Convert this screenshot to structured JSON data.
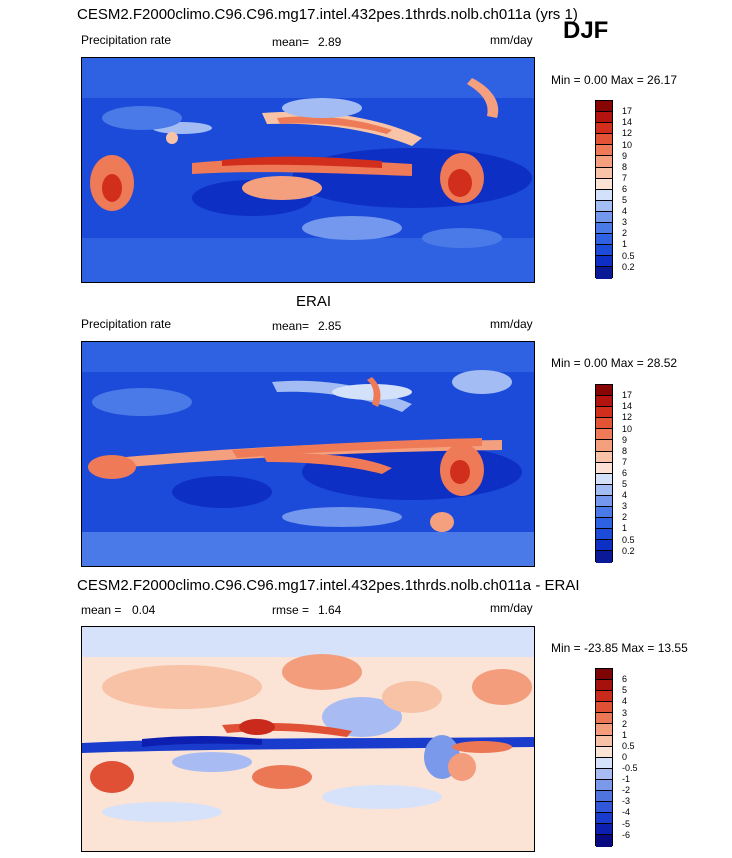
{
  "season": "DJF",
  "panels": [
    {
      "title": "CESM2.F2000climo.C96.C96.mg17.intel.432pes.1thrds.nolb.ch011a (yrs 1)",
      "left_label": "Precipitation rate",
      "stat_label": "mean=",
      "stat_value": "2.89",
      "units": "mm/day",
      "min_max": "Min =   0.00 Max =  26.17",
      "min": 0.0,
      "max": 26.17,
      "palette": "precip"
    },
    {
      "title": "ERAI",
      "left_label": "Precipitation rate",
      "stat_label": "mean=",
      "stat_value": "2.85",
      "units": "mm/day",
      "min_max": "Min =   0.00 Max =  28.52",
      "min": 0.0,
      "max": 28.52,
      "palette": "precip"
    },
    {
      "title": "CESM2.F2000climo.C96.C96.mg17.intel.432pes.1thrds.nolb.ch011a - ERAI",
      "left_label": "mean =",
      "left_value": "0.04",
      "stat_label": "rmse =",
      "stat_value": "1.64",
      "units": "mm/day",
      "min_max": "Min = -23.85 Max =  13.55",
      "min": -23.85,
      "max": 13.55,
      "palette": "diff"
    }
  ],
  "chart_data": [
    {
      "type": "heatmap",
      "title": "CESM2.F2000climo.C96.C96.mg17.intel.432pes.1thrds.nolb.ch011a (yrs 1)",
      "variable": "Precipitation rate",
      "units": "mm/day",
      "mean": 2.89,
      "min": 0.0,
      "max": 26.17,
      "colorbar_levels": [
        0.2,
        0.5,
        1,
        2,
        3,
        4,
        5,
        6,
        7,
        8,
        9,
        10,
        12,
        14,
        17
      ],
      "colorbar_labels": [
        "0.2",
        "0.5",
        "1",
        "2",
        "3",
        "4",
        "5",
        "6",
        "7",
        "8",
        "9",
        "10",
        "12",
        "14",
        "17"
      ]
    },
    {
      "type": "heatmap",
      "title": "ERAI",
      "variable": "Precipitation rate",
      "units": "mm/day",
      "mean": 2.85,
      "min": 0.0,
      "max": 28.52,
      "colorbar_levels": [
        0.2,
        0.5,
        1,
        2,
        3,
        4,
        5,
        6,
        7,
        8,
        9,
        10,
        12,
        14,
        17
      ],
      "colorbar_labels": [
        "0.2",
        "0.5",
        "1",
        "2",
        "3",
        "4",
        "5",
        "6",
        "7",
        "8",
        "9",
        "10",
        "12",
        "14",
        "17"
      ]
    },
    {
      "type": "heatmap",
      "title": "CESM2.F2000climo.C96.C96.mg17.intel.432pes.1thrds.nolb.ch011a - ERAI",
      "units": "mm/day",
      "mean": 0.04,
      "rmse": 1.64,
      "min": -23.85,
      "max": 13.55,
      "colorbar_levels": [
        -6,
        -5,
        -4,
        -3,
        -2,
        -1,
        -0.5,
        0,
        0.5,
        1,
        2,
        3,
        4,
        5,
        6
      ],
      "colorbar_labels": [
        "-6",
        "-5",
        "-4",
        "-3",
        "-2",
        "-1",
        "-0.5",
        "0",
        "0.5",
        "1",
        "2",
        "3",
        "4",
        "5",
        "6"
      ]
    }
  ],
  "palettes": {
    "precip": [
      "#0a1a96",
      "#0d2fc4",
      "#1c4bd9",
      "#2f62e3",
      "#4a7ae8",
      "#7398ee",
      "#a3bdf4",
      "#d4e1fa",
      "#fbe2d4",
      "#f8c3a6",
      "#f4a07e",
      "#ee7a57",
      "#e55337",
      "#d22e1e",
      "#b31410",
      "#880505"
    ],
    "diff": [
      "#0a0a80",
      "#0d1fb0",
      "#1a3ccc",
      "#3158d8",
      "#4f74e0",
      "#7a99ea",
      "#a8bcf3",
      "#d6e2fa",
      "#fbe3d6",
      "#f8c2a6",
      "#f39d7c",
      "#ec7755",
      "#e05034",
      "#c92a1c",
      "#a6110e",
      "#7c0404"
    ]
  }
}
